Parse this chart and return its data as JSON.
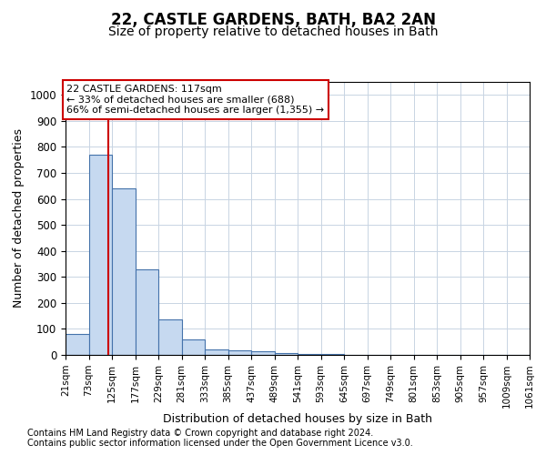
{
  "title1": "22, CASTLE GARDENS, BATH, BA2 2AN",
  "title2": "Size of property relative to detached houses in Bath",
  "xlabel": "Distribution of detached houses by size in Bath",
  "ylabel": "Number of detached properties",
  "bin_edges": [
    21,
    73,
    125,
    177,
    229,
    281,
    333,
    385,
    437,
    489,
    541,
    593,
    645,
    697,
    749,
    801,
    853,
    905,
    957,
    1009,
    1061
  ],
  "bar_heights": [
    80,
    770,
    640,
    330,
    135,
    58,
    20,
    18,
    15,
    8,
    3,
    2,
    1,
    1,
    0,
    0,
    0,
    0,
    0,
    0
  ],
  "bar_color": "#c6d9f0",
  "bar_edge_color": "#4472aa",
  "grid_color": "#c8d4e3",
  "vline_x": 117,
  "vline_color": "#cc0000",
  "annotation_text": "22 CASTLE GARDENS: 117sqm\n← 33% of detached houses are smaller (688)\n66% of semi-detached houses are larger (1,355) →",
  "annotation_box_color": "#cc0000",
  "ylim": [
    0,
    1050
  ],
  "yticks": [
    0,
    100,
    200,
    300,
    400,
    500,
    600,
    700,
    800,
    900,
    1000
  ],
  "footnote1": "Contains HM Land Registry data © Crown copyright and database right 2024.",
  "footnote2": "Contains public sector information licensed under the Open Government Licence v3.0.",
  "title1_fontsize": 12,
  "title2_fontsize": 10,
  "tick_fontsize": 7.5,
  "label_fontsize": 9,
  "annotation_fontsize": 8,
  "footnote_fontsize": 7
}
